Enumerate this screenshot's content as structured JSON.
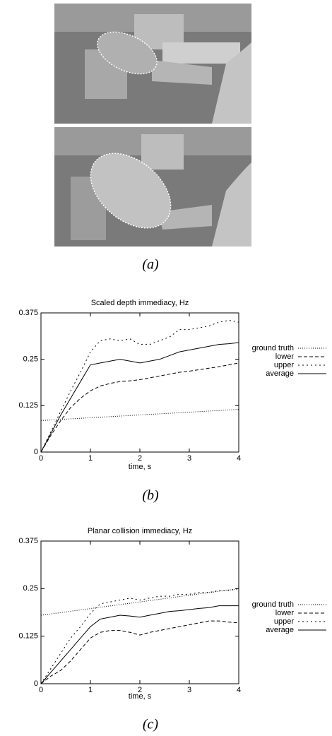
{
  "captions": [
    "(a)",
    "(b)",
    "(c)"
  ],
  "chart_data": [
    {
      "type": "line",
      "title": "Scaled depth immediacy, Hz",
      "xlabel": "time, s",
      "x": [
        0,
        0.2,
        0.4,
        0.6,
        0.8,
        1,
        1.2,
        1.4,
        1.6,
        1.8,
        2,
        2.2,
        2.4,
        2.6,
        2.8,
        3,
        3.2,
        3.4,
        3.6,
        3.8,
        4
      ],
      "xlim": [
        0,
        4
      ],
      "xticks": [
        0,
        1,
        2,
        3,
        4
      ],
      "ylim": [
        0,
        0.375
      ],
      "yticks": [
        0,
        0.125,
        0.25,
        0.375
      ],
      "legend": "right",
      "grid": false,
      "series": [
        {
          "name": "ground truth",
          "color": "#000000",
          "values": [
            0.085,
            0.0865,
            0.088,
            0.0895,
            0.091,
            0.0925,
            0.094,
            0.0955,
            0.097,
            0.0985,
            0.1,
            0.1015,
            0.103,
            0.1045,
            0.106,
            0.1075,
            0.109,
            0.1105,
            0.112,
            0.1135,
            0.115
          ]
        },
        {
          "name": "lower",
          "color": "#000000",
          "values": [
            0,
            0.045,
            0.085,
            0.12,
            0.145,
            0.165,
            0.178,
            0.185,
            0.19,
            0.192,
            0.195,
            0.2,
            0.205,
            0.21,
            0.215,
            0.218,
            0.222,
            0.226,
            0.23,
            0.235,
            0.24
          ]
        },
        {
          "name": "upper",
          "color": "#000000",
          "values": [
            0,
            0.055,
            0.11,
            0.165,
            0.215,
            0.27,
            0.3,
            0.305,
            0.3,
            0.305,
            0.29,
            0.29,
            0.3,
            0.31,
            0.33,
            0.33,
            0.335,
            0.34,
            0.35,
            0.355,
            0.35
          ]
        },
        {
          "name": "average",
          "color": "#000000",
          "values": [
            0,
            0.05,
            0.1,
            0.145,
            0.19,
            0.235,
            0.24,
            0.245,
            0.25,
            0.245,
            0.24,
            0.245,
            0.25,
            0.26,
            0.27,
            0.275,
            0.28,
            0.285,
            0.29,
            0.292,
            0.295
          ]
        }
      ]
    },
    {
      "type": "line",
      "title": "Planar collision immediacy, Hz",
      "xlabel": "time, s",
      "x": [
        0,
        0.2,
        0.4,
        0.6,
        0.8,
        1,
        1.2,
        1.4,
        1.6,
        1.8,
        2,
        2.2,
        2.4,
        2.6,
        2.8,
        3,
        3.2,
        3.4,
        3.6,
        3.8,
        4
      ],
      "xlim": [
        0,
        4
      ],
      "xticks": [
        0,
        1,
        2,
        3,
        4
      ],
      "ylim": [
        0,
        0.375
      ],
      "yticks": [
        0,
        0.125,
        0.25,
        0.375
      ],
      "legend": "right",
      "grid": false,
      "series": [
        {
          "name": "ground truth",
          "color": "#000000",
          "values": [
            0.18,
            0.1835,
            0.187,
            0.1905,
            0.194,
            0.1975,
            0.201,
            0.2045,
            0.208,
            0.2115,
            0.215,
            0.2185,
            0.222,
            0.2255,
            0.229,
            0.2325,
            0.236,
            0.2395,
            0.243,
            0.2465,
            0.25
          ]
        },
        {
          "name": "lower",
          "color": "#000000",
          "values": [
            0,
            0.02,
            0.035,
            0.06,
            0.09,
            0.12,
            0.135,
            0.14,
            0.14,
            0.135,
            0.128,
            0.135,
            0.14,
            0.145,
            0.15,
            0.155,
            0.16,
            0.165,
            0.165,
            0.162,
            0.16
          ]
        },
        {
          "name": "upper",
          "color": "#000000",
          "values": [
            0,
            0.04,
            0.08,
            0.12,
            0.15,
            0.185,
            0.21,
            0.215,
            0.22,
            0.225,
            0.22,
            0.225,
            0.23,
            0.23,
            0.235,
            0.235,
            0.24,
            0.24,
            0.245,
            0.245,
            0.25
          ]
        },
        {
          "name": "average",
          "color": "#000000",
          "values": [
            0,
            0.03,
            0.06,
            0.09,
            0.12,
            0.15,
            0.17,
            0.175,
            0.18,
            0.178,
            0.175,
            0.18,
            0.185,
            0.19,
            0.192,
            0.195,
            0.198,
            0.2,
            0.205,
            0.205,
            0.205
          ]
        }
      ]
    }
  ]
}
